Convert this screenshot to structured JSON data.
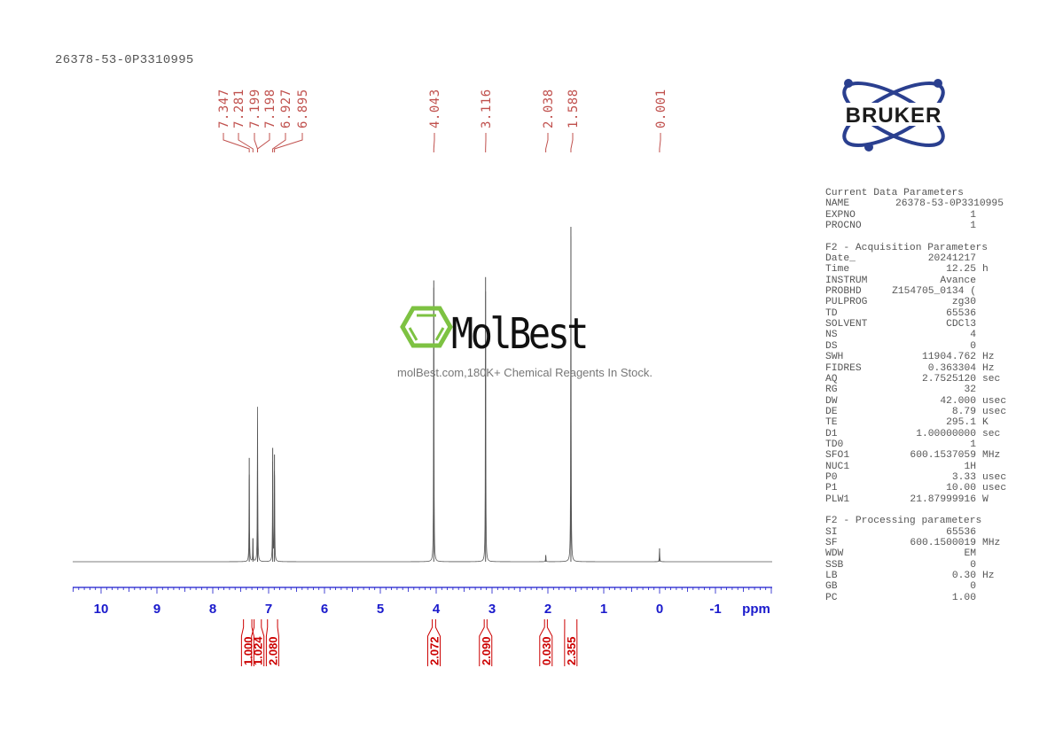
{
  "sample_name": "26378-53-0P3310995",
  "brand": {
    "name": "BRUKER",
    "colors": {
      "orbit": "#2a3f8f",
      "text": "#1b1b1b"
    }
  },
  "watermark": {
    "name": "MolBest",
    "tagline": "molBest.com,180K+ Chemical Reagents In Stock.",
    "color": "#7dc242"
  },
  "parameters": {
    "current": {
      "title": "Current Data Parameters",
      "rows": [
        {
          "label": "NAME",
          "value": "26378-53-0P3310995",
          "unit": ""
        },
        {
          "label": "EXPNO",
          "value": "1",
          "unit": ""
        },
        {
          "label": "PROCNO",
          "value": "1",
          "unit": ""
        }
      ]
    },
    "acquisition": {
      "title": "F2 - Acquisition Parameters",
      "rows": [
        {
          "label": "Date_",
          "value": "20241217",
          "unit": ""
        },
        {
          "label": "Time",
          "value": "12.25",
          "unit": "h"
        },
        {
          "label": "INSTRUM",
          "value": "Avance",
          "unit": ""
        },
        {
          "label": "PROBHD",
          "value": "Z154705_0134 (",
          "unit": ""
        },
        {
          "label": "PULPROG",
          "value": "zg30",
          "unit": ""
        },
        {
          "label": "TD",
          "value": "65536",
          "unit": ""
        },
        {
          "label": "SOLVENT",
          "value": "CDCl3",
          "unit": ""
        },
        {
          "label": "NS",
          "value": "4",
          "unit": ""
        },
        {
          "label": "DS",
          "value": "0",
          "unit": ""
        },
        {
          "label": "SWH",
          "value": "11904.762",
          "unit": "Hz"
        },
        {
          "label": "FIDRES",
          "value": "0.363304",
          "unit": "Hz"
        },
        {
          "label": "AQ",
          "value": "2.7525120",
          "unit": "sec"
        },
        {
          "label": "RG",
          "value": "32",
          "unit": ""
        },
        {
          "label": "DW",
          "value": "42.000",
          "unit": "usec"
        },
        {
          "label": "DE",
          "value": "8.79",
          "unit": "usec"
        },
        {
          "label": "TE",
          "value": "295.1",
          "unit": "K"
        },
        {
          "label": "D1",
          "value": "1.00000000",
          "unit": "sec"
        },
        {
          "label": "TD0",
          "value": "1",
          "unit": ""
        },
        {
          "label": "SFO1",
          "value": "600.1537059",
          "unit": "MHz"
        },
        {
          "label": "NUC1",
          "value": "1H",
          "unit": ""
        },
        {
          "label": "P0",
          "value": "3.33",
          "unit": "usec"
        },
        {
          "label": "P1",
          "value": "10.00",
          "unit": "usec"
        },
        {
          "label": "PLW1",
          "value": "21.87999916",
          "unit": "W"
        }
      ]
    },
    "processing": {
      "title": "F2 - Processing parameters",
      "rows": [
        {
          "label": "SI",
          "value": "65536",
          "unit": ""
        },
        {
          "label": "SF",
          "value": "600.1500019",
          "unit": "MHz"
        },
        {
          "label": "WDW",
          "value": "EM",
          "unit": ""
        },
        {
          "label": "SSB",
          "value": "0",
          "unit": ""
        },
        {
          "label": "LB",
          "value": "0.30",
          "unit": "Hz"
        },
        {
          "label": "GB",
          "value": "0",
          "unit": ""
        },
        {
          "label": "PC",
          "value": "1.00",
          "unit": ""
        }
      ]
    }
  },
  "chart_data": {
    "type": "line",
    "xlabel": "ppm",
    "xlim": [
      10.5,
      -2.0
    ],
    "x_reversed": true,
    "xticks": [
      "10",
      "9",
      "8",
      "7",
      "6",
      "5",
      "4",
      "3",
      "2",
      "1",
      "0",
      "-1"
    ],
    "colors": {
      "spectrum": "#555555",
      "axis": "#1a1acc",
      "peak_labels": "#c0504d",
      "integrals": "#cc0000"
    },
    "peaks": [
      {
        "ppm": 7.347,
        "label": "7.347",
        "rel_intensity": 31
      },
      {
        "ppm": 7.281,
        "label": "7.281",
        "rel_intensity": 7
      },
      {
        "ppm": 7.199,
        "label": "7.199",
        "rel_intensity": 27
      },
      {
        "ppm": 7.198,
        "label": "7.198",
        "rel_intensity": 20
      },
      {
        "ppm": 6.927,
        "label": "6.927",
        "rel_intensity": 34
      },
      {
        "ppm": 6.895,
        "label": "6.895",
        "rel_intensity": 32
      },
      {
        "ppm": 4.043,
        "label": "4.043",
        "rel_intensity": 84
      },
      {
        "ppm": 3.116,
        "label": "3.116",
        "rel_intensity": 85
      },
      {
        "ppm": 2.038,
        "label": "2.038",
        "rel_intensity": 2
      },
      {
        "ppm": 1.588,
        "label": "1.588",
        "rel_intensity": 100
      },
      {
        "ppm": 0.001,
        "label": "0.001",
        "rel_intensity": 4
      }
    ],
    "integrals": [
      {
        "from": 7.45,
        "to": 7.3,
        "value": "1.000"
      },
      {
        "from": 7.26,
        "to": 7.13,
        "value": "1.024"
      },
      {
        "from": 7.02,
        "to": 6.84,
        "value": "2.080"
      },
      {
        "from": 4.07,
        "to": 4.01,
        "value": "2.072"
      },
      {
        "from": 3.14,
        "to": 3.09,
        "value": "2.090"
      },
      {
        "from": 2.06,
        "to": 2.01,
        "value": "0.030"
      },
      {
        "from": 1.7,
        "to": 1.48,
        "value": "2.355"
      }
    ]
  }
}
